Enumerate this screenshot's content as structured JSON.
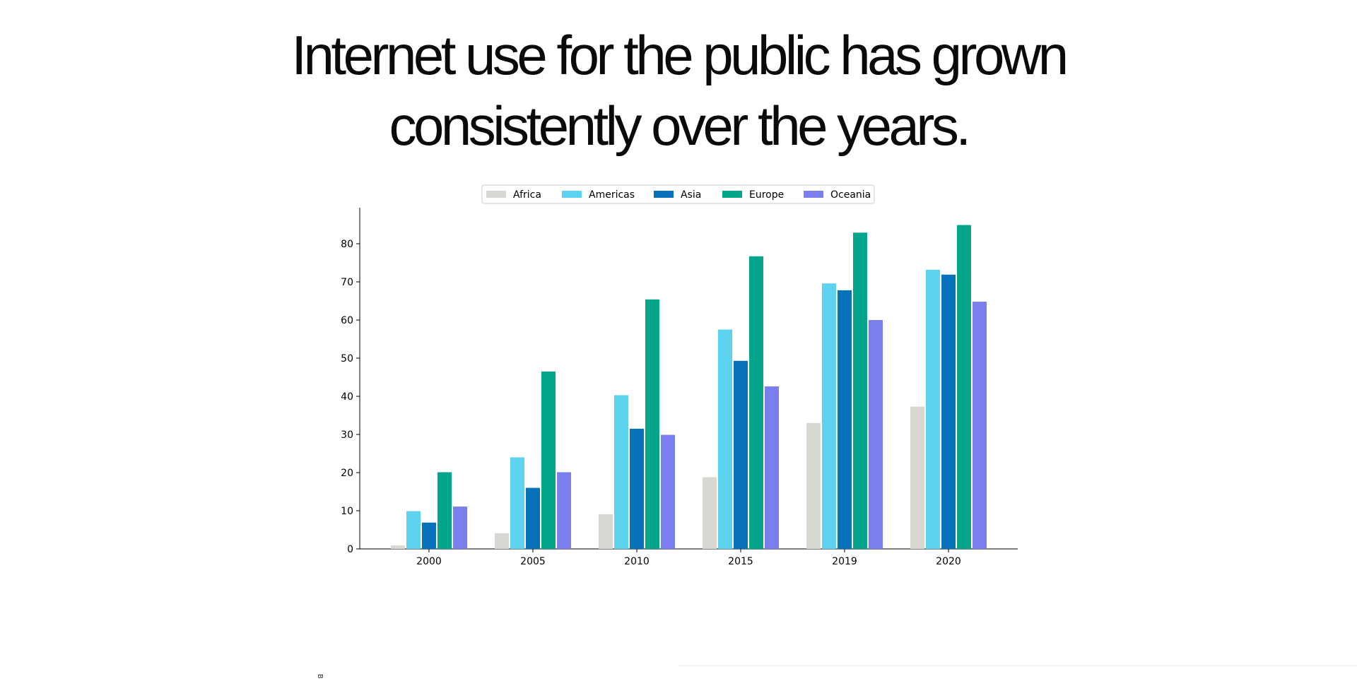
{
  "headline": {
    "line1": "Internet use for the public has grown",
    "line2": "consistently over the years."
  },
  "footer_mark": "B",
  "chart_data": {
    "type": "bar",
    "title": "",
    "xlabel": "",
    "ylabel": "",
    "categories": [
      "2000",
      "2005",
      "2010",
      "2015",
      "2019",
      "2020"
    ],
    "series": [
      {
        "name": "Africa",
        "color": "#d9d7d2",
        "values": [
          0.9,
          4.1,
          9.1,
          18.8,
          33.0,
          37.3
        ]
      },
      {
        "name": "Americas",
        "color": "#5dd3f0",
        "values": [
          9.9,
          24.0,
          40.3,
          57.5,
          69.6,
          73.2
        ]
      },
      {
        "name": "Asia",
        "color": "#0771b9",
        "values": [
          6.9,
          16.0,
          31.5,
          49.3,
          67.8,
          71.9
        ]
      },
      {
        "name": "Europe",
        "color": "#05a58c",
        "values": [
          20.1,
          46.5,
          65.4,
          76.7,
          82.9,
          84.9
        ]
      },
      {
        "name": "Oceania",
        "color": "#7b7fee",
        "values": [
          11.1,
          20.1,
          29.9,
          42.6,
          60.0,
          64.8
        ]
      }
    ],
    "yticks": [
      0,
      10,
      20,
      30,
      40,
      50,
      60,
      70,
      80
    ],
    "ylim": [
      0,
      89
    ],
    "grid": false,
    "legend_position": "top-center"
  }
}
